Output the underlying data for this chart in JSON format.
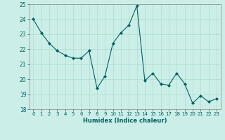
{
  "x": [
    0,
    1,
    2,
    3,
    4,
    5,
    6,
    7,
    8,
    9,
    10,
    11,
    12,
    13,
    14,
    15,
    16,
    17,
    18,
    19,
    20,
    21,
    22,
    23
  ],
  "y": [
    24.0,
    23.1,
    22.4,
    21.9,
    21.6,
    21.4,
    21.4,
    21.9,
    19.4,
    20.2,
    22.4,
    23.1,
    23.6,
    24.9,
    19.9,
    20.4,
    19.7,
    19.6,
    20.4,
    19.7,
    18.4,
    18.9,
    18.5,
    18.7
  ],
  "xlabel": "Humidex (Indice chaleur)",
  "ylim": [
    18,
    25
  ],
  "xlim_min": -0.5,
  "xlim_max": 23.5,
  "yticks": [
    18,
    19,
    20,
    21,
    22,
    23,
    24,
    25
  ],
  "xticks": [
    0,
    1,
    2,
    3,
    4,
    5,
    6,
    7,
    8,
    9,
    10,
    11,
    12,
    13,
    14,
    15,
    16,
    17,
    18,
    19,
    20,
    21,
    22,
    23
  ],
  "line_color": "#006060",
  "marker_color": "#006060",
  "bg_color": "#cceee8",
  "grid_color": "#aaddcc",
  "xlabel_color": "#006060",
  "tick_color": "#006060",
  "spine_color": "#888888"
}
